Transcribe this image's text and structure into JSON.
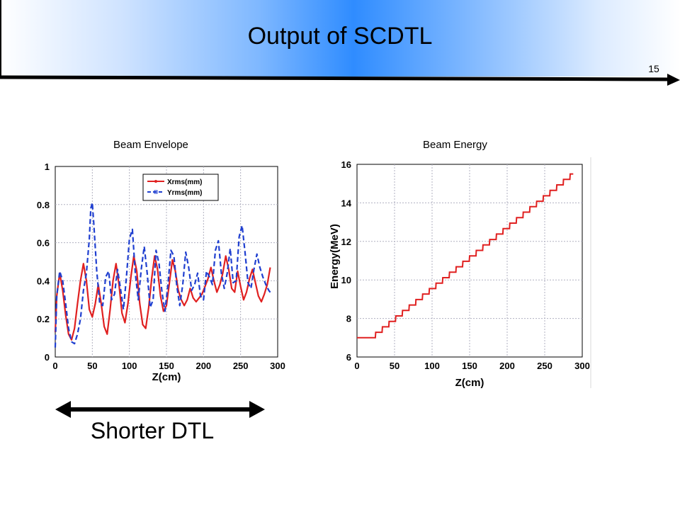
{
  "header": {
    "title": "Output of SCDTL",
    "page_number": "15"
  },
  "caption": "Shorter DTL",
  "colors": {
    "x_series": "#e02020",
    "y_series": "#1f3fd0",
    "energy": "#e02020",
    "grid": "#b0b0c0",
    "header_accent": "#2f8cff"
  },
  "chart_data": [
    {
      "type": "line",
      "title": "Beam Envelope",
      "xlabel": "Z(cm)",
      "ylabel": "",
      "xlim": [
        0,
        300
      ],
      "ylim": [
        0,
        1
      ],
      "xticks": [
        0,
        50,
        100,
        150,
        200,
        250,
        300
      ],
      "yticks": [
        0,
        0.2,
        0.4,
        0.6,
        0.8,
        1
      ],
      "legend_position": "top-right",
      "series": [
        {
          "name": "Xrms(mm)",
          "x": [
            0,
            2,
            6,
            10,
            14,
            18,
            22,
            26,
            30,
            34,
            38,
            42,
            46,
            50,
            54,
            58,
            62,
            66,
            70,
            74,
            78,
            82,
            86,
            90,
            94,
            98,
            102,
            106,
            110,
            114,
            118,
            122,
            126,
            130,
            134,
            138,
            142,
            146,
            150,
            154,
            158,
            162,
            166,
            170,
            174,
            178,
            182,
            186,
            190,
            194,
            198,
            202,
            206,
            210,
            214,
            218,
            222,
            226,
            230,
            234,
            238,
            242,
            246,
            250,
            254,
            258,
            262,
            266,
            270,
            274,
            278,
            282,
            286,
            290
          ],
          "y": [
            0.13,
            0.32,
            0.44,
            0.35,
            0.22,
            0.12,
            0.09,
            0.15,
            0.28,
            0.4,
            0.49,
            0.4,
            0.25,
            0.21,
            0.28,
            0.38,
            0.28,
            0.16,
            0.12,
            0.25,
            0.4,
            0.49,
            0.38,
            0.23,
            0.18,
            0.28,
            0.42,
            0.53,
            0.45,
            0.28,
            0.17,
            0.15,
            0.26,
            0.41,
            0.53,
            0.46,
            0.32,
            0.24,
            0.27,
            0.39,
            0.51,
            0.45,
            0.35,
            0.3,
            0.27,
            0.3,
            0.36,
            0.31,
            0.29,
            0.31,
            0.33,
            0.37,
            0.41,
            0.47,
            0.4,
            0.34,
            0.38,
            0.44,
            0.53,
            0.46,
            0.36,
            0.34,
            0.45,
            0.37,
            0.3,
            0.34,
            0.41,
            0.46,
            0.39,
            0.32,
            0.29,
            0.33,
            0.38,
            0.47
          ]
        },
        {
          "name": "Yrms(mm)",
          "x": [
            0,
            2,
            6,
            10,
            14,
            18,
            22,
            26,
            30,
            34,
            38,
            42,
            46,
            48,
            50,
            52,
            56,
            60,
            64,
            68,
            72,
            76,
            80,
            84,
            88,
            92,
            96,
            100,
            104,
            108,
            112,
            116,
            120,
            124,
            128,
            132,
            136,
            140,
            144,
            148,
            152,
            156,
            160,
            164,
            168,
            172,
            176,
            180,
            184,
            188,
            192,
            196,
            200,
            204,
            208,
            212,
            216,
            220,
            224,
            228,
            232,
            236,
            240,
            244,
            248,
            252,
            256,
            260,
            264,
            268,
            272,
            276,
            280,
            284,
            288,
            292
          ],
          "y": [
            0.05,
            0.32,
            0.45,
            0.4,
            0.28,
            0.15,
            0.08,
            0.07,
            0.12,
            0.2,
            0.35,
            0.44,
            0.62,
            0.78,
            0.81,
            0.7,
            0.45,
            0.28,
            0.27,
            0.42,
            0.45,
            0.3,
            0.33,
            0.46,
            0.36,
            0.25,
            0.42,
            0.62,
            0.67,
            0.44,
            0.3,
            0.46,
            0.58,
            0.44,
            0.26,
            0.3,
            0.56,
            0.49,
            0.34,
            0.24,
            0.38,
            0.56,
            0.53,
            0.37,
            0.27,
            0.38,
            0.55,
            0.47,
            0.35,
            0.38,
            0.44,
            0.32,
            0.3,
            0.45,
            0.42,
            0.38,
            0.56,
            0.61,
            0.44,
            0.36,
            0.44,
            0.57,
            0.39,
            0.4,
            0.63,
            0.69,
            0.55,
            0.39,
            0.36,
            0.46,
            0.54,
            0.47,
            0.42,
            0.38,
            0.35,
            0.33
          ]
        }
      ]
    },
    {
      "type": "line",
      "title": "Beam Energy",
      "xlabel": "Z(cm)",
      "ylabel": "Energy(MeV)",
      "xlim": [
        0,
        300
      ],
      "ylim": [
        6,
        16
      ],
      "xticks": [
        0,
        50,
        100,
        150,
        200,
        250,
        300
      ],
      "yticks": [
        6,
        8,
        10,
        12,
        14,
        16
      ],
      "series": [
        {
          "name": "",
          "x": [
            0,
            20,
            288
          ],
          "y": [
            7.0,
            7.0,
            15.5
          ]
        }
      ]
    }
  ]
}
